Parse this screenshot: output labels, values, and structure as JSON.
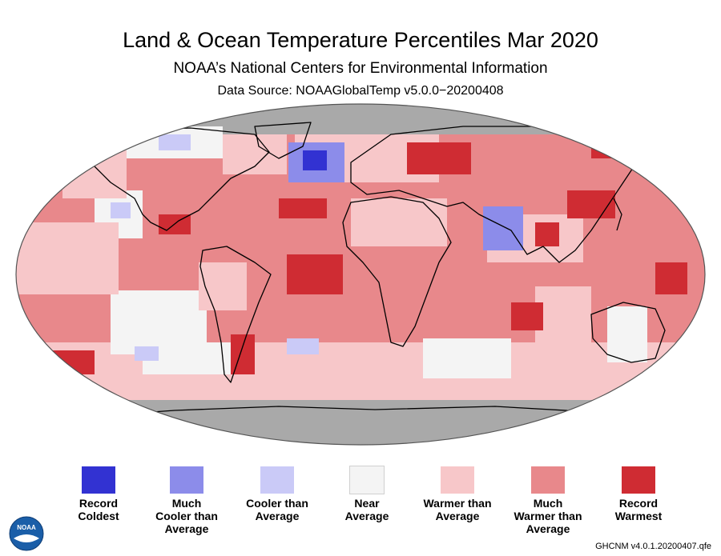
{
  "title": "Land & Ocean Temperature Percentiles Mar 2020",
  "subtitle": "NOAA’s National Centers for Environmental Information",
  "source": "Data Source: NOAAGlobalTemp v5.0.0−20200408",
  "credit": "GHCNM v4.0.1.20200407.qfe",
  "logo_text": "NOAA",
  "colors": {
    "no_data": "#a9a9a9",
    "coastline": "#000000"
  },
  "legend": [
    {
      "label": "Record\nColdest",
      "color": "#3232d2"
    },
    {
      "label": "Much\nCooler than\nAverage",
      "color": "#8c8cea"
    },
    {
      "label": "Cooler than\nAverage",
      "color": "#cacaf7"
    },
    {
      "label": "Near\nAverage",
      "color": "#f4f4f4"
    },
    {
      "label": "Warmer than\nAverage",
      "color": "#f7c7c9"
    },
    {
      "label": "Much\nWarmer than\nAverage",
      "color": "#e8888b"
    },
    {
      "label": "Record\nWarmest",
      "color": "#cf2c33"
    }
  ]
}
